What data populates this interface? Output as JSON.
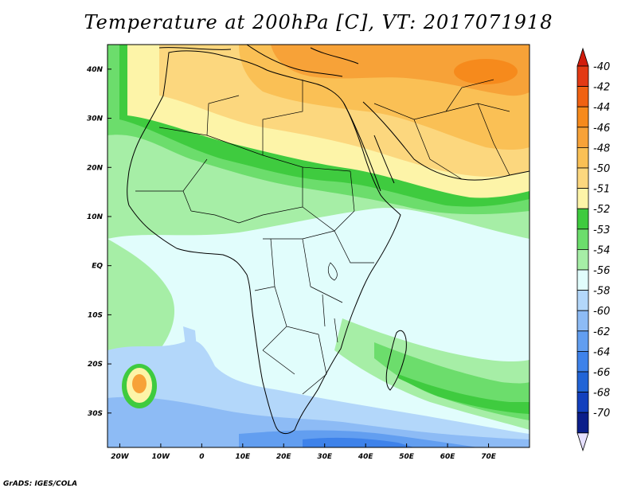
{
  "title": "Temperature at 200hPa [C], VT: 2017071918",
  "credit": "GrADS: IGES/COLA",
  "map": {
    "lon_range": [
      -23,
      80
    ],
    "lat_range": [
      -37,
      45
    ],
    "lon_ticks": [
      {
        "value": -20,
        "label": "20W"
      },
      {
        "value": -10,
        "label": "10W"
      },
      {
        "value": 0,
        "label": "0"
      },
      {
        "value": 10,
        "label": "10E"
      },
      {
        "value": 20,
        "label": "20E"
      },
      {
        "value": 30,
        "label": "30E"
      },
      {
        "value": 40,
        "label": "40E"
      },
      {
        "value": 50,
        "label": "50E"
      },
      {
        "value": 60,
        "label": "60E"
      },
      {
        "value": 70,
        "label": "70E"
      }
    ],
    "lat_ticks": [
      {
        "value": 40,
        "label": "40N"
      },
      {
        "value": 30,
        "label": "30N"
      },
      {
        "value": 20,
        "label": "20N"
      },
      {
        "value": 10,
        "label": "10N"
      },
      {
        "value": 0,
        "label": "EQ"
      },
      {
        "value": -10,
        "label": "10S"
      },
      {
        "value": -20,
        "label": "20S"
      },
      {
        "value": -30,
        "label": "30S"
      }
    ]
  },
  "colorbar": {
    "levels": [
      {
        "label": "-40",
        "color": "#e33a14"
      },
      {
        "label": "-42",
        "color": "#f06212"
      },
      {
        "label": "-44",
        "color": "#f68a1c"
      },
      {
        "label": "-46",
        "color": "#f7a238"
      },
      {
        "label": "-48",
        "color": "#fac055"
      },
      {
        "label": "-50",
        "color": "#fcd77e"
      },
      {
        "label": "-51",
        "color": "#fdf4a8"
      },
      {
        "label": "-52",
        "color": "#3fcb3f"
      },
      {
        "label": "-53",
        "color": "#6cdd6c"
      },
      {
        "label": "-54",
        "color": "#a6eea6"
      },
      {
        "label": "-56",
        "color": "#e1fdfc"
      },
      {
        "label": "-58",
        "color": "#b3d7fa"
      },
      {
        "label": "-60",
        "color": "#8dbbf5"
      },
      {
        "label": "-62",
        "color": "#629ef0"
      },
      {
        "label": "-64",
        "color": "#3e82ea"
      },
      {
        "label": "-66",
        "color": "#2164d6"
      },
      {
        "label": "-68",
        "color": "#1340bd"
      },
      {
        "label": "-70",
        "color": "#0b1e8a"
      }
    ],
    "top_arrow_color": "#d11c0c",
    "bottom_arrow_color": "#e6e0ff"
  }
}
